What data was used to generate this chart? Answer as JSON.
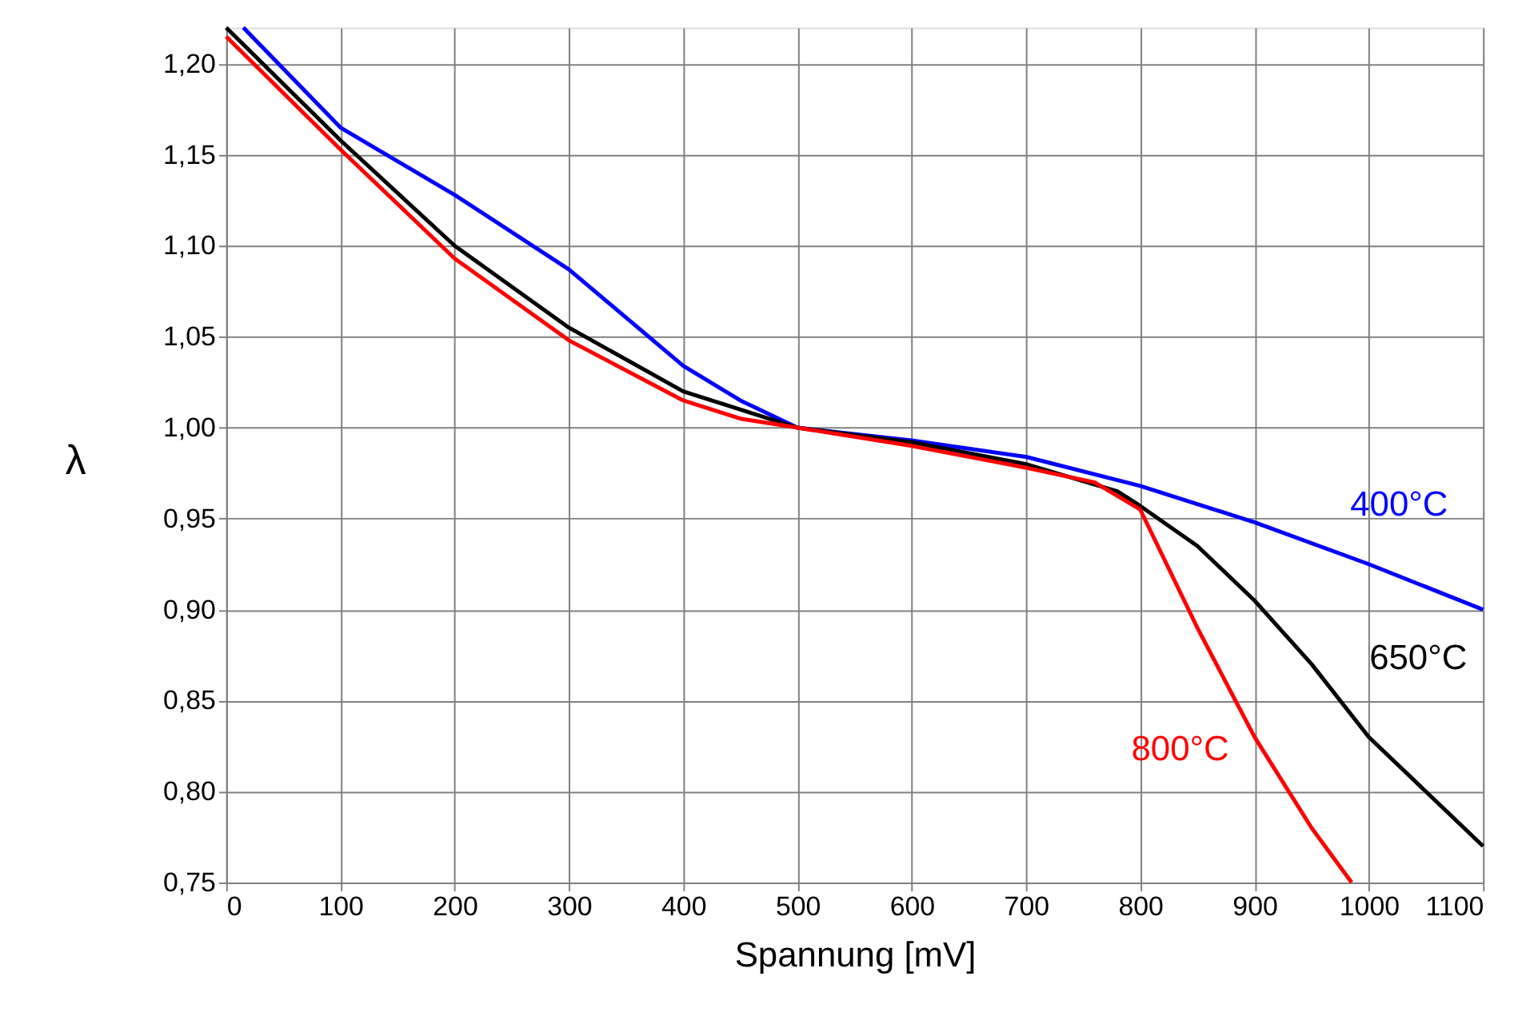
{
  "chart_data": {
    "type": "line",
    "xlabel": "Spannung [mV]",
    "ylabel": "λ",
    "xlim": [
      0,
      1100
    ],
    "xticks": [
      0,
      100,
      200,
      300,
      400,
      500,
      600,
      700,
      800,
      900,
      {
        "value": 1000,
        "label": "1000"
      },
      {
        "value": 1100,
        "label": "1100"
      }
    ],
    "ylim": [
      0.75,
      1.22
    ],
    "yticks": [
      {
        "value": 0.75,
        "label": "0,75"
      },
      {
        "value": 0.8,
        "label": "0,80"
      },
      {
        "value": 0.85,
        "label": "0,85"
      },
      {
        "value": 0.9,
        "label": "0,90"
      },
      {
        "value": 0.95,
        "label": "0,95"
      },
      {
        "value": 1.0,
        "label": "1,00"
      },
      {
        "value": 1.05,
        "label": "1,05"
      },
      {
        "value": 1.1,
        "label": "1,10"
      },
      {
        "value": 1.15,
        "label": "1,15"
      },
      {
        "value": 1.2,
        "label": "1,20"
      }
    ],
    "grid": true,
    "legend": false,
    "marker": "none",
    "line_style": "solid",
    "series": [
      {
        "name": "400°C",
        "color": "#0000ff",
        "x": [
          15,
          100,
          200,
          300,
          400,
          450,
          500,
          600,
          700,
          800,
          900,
          1000,
          1100
        ],
        "values": [
          1.22,
          1.165,
          1.128,
          1.087,
          1.034,
          1.015,
          1.0,
          0.993,
          0.984,
          0.968,
          0.948,
          0.925,
          0.9
        ]
      },
      {
        "name": "650°C",
        "color": "#000000",
        "x": [
          0,
          100,
          200,
          300,
          400,
          500,
          600,
          700,
          780,
          800,
          850,
          900,
          950,
          1000,
          1050,
          1100
        ],
        "values": [
          1.22,
          1.158,
          1.1,
          1.055,
          1.02,
          1.0,
          0.992,
          0.98,
          0.965,
          0.957,
          0.935,
          0.905,
          0.87,
          0.83,
          0.8,
          0.77
        ]
      },
      {
        "name": "800°C",
        "color": "#ff0000",
        "x": [
          0,
          100,
          200,
          300,
          400,
          450,
          500,
          600,
          700,
          760,
          800,
          850,
          900,
          950,
          985
        ],
        "values": [
          1.215,
          1.153,
          1.093,
          1.048,
          1.015,
          1.005,
          1.0,
          0.99,
          0.978,
          0.97,
          0.955,
          0.89,
          0.83,
          0.78,
          0.75
        ]
      }
    ]
  }
}
